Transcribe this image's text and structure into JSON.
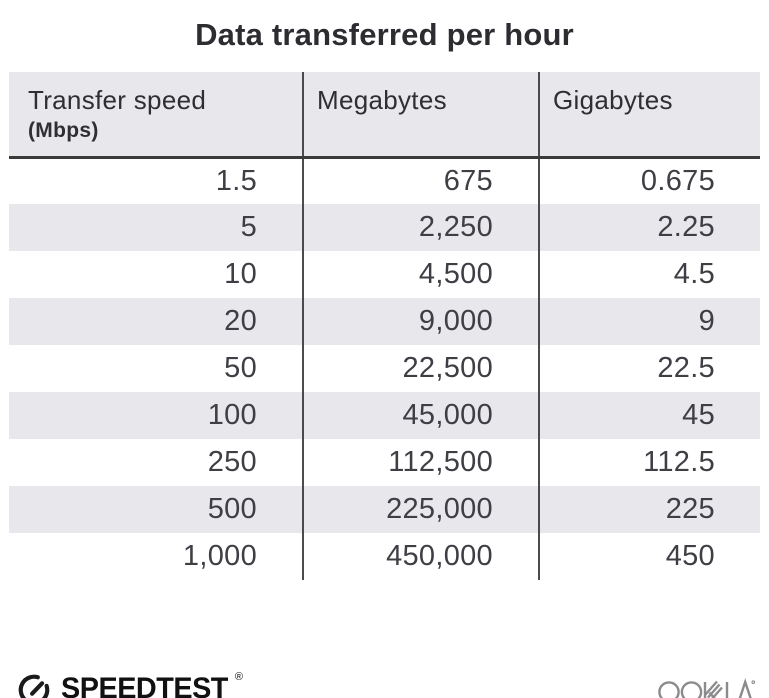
{
  "title": "Data transferred per hour",
  "table": {
    "columns": [
      {
        "label": "Transfer speed",
        "sublabel": "(Mbps)"
      },
      {
        "label": "Megabytes",
        "sublabel": ""
      },
      {
        "label": "Gigabytes",
        "sublabel": ""
      }
    ],
    "rows": [
      [
        "1.5",
        "675",
        "0.675"
      ],
      [
        "5",
        "2,250",
        "2.25"
      ],
      [
        "10",
        "4,500",
        "4.5"
      ],
      [
        "20",
        "9,000",
        "9"
      ],
      [
        "50",
        "22,500",
        "22.5"
      ],
      [
        "100",
        "45,000",
        "45"
      ],
      [
        "250",
        "112,500",
        "112.5"
      ],
      [
        "500",
        "225,000",
        "225"
      ],
      [
        "1,000",
        "450,000",
        "450"
      ]
    ]
  },
  "chart_data": {
    "type": "table",
    "title": "Data transferred per hour",
    "columns": [
      "Transfer speed (Mbps)",
      "Megabytes",
      "Gigabytes"
    ],
    "rows": [
      [
        1.5,
        675,
        0.675
      ],
      [
        5,
        2250,
        2.25
      ],
      [
        10,
        4500,
        4.5
      ],
      [
        20,
        9000,
        9
      ],
      [
        50,
        22500,
        22.5
      ],
      [
        100,
        45000,
        45
      ],
      [
        250,
        112500,
        112.5
      ],
      [
        500,
        225000,
        225
      ],
      [
        1000,
        450000,
        450
      ]
    ],
    "layout_hints": {
      "striped_rows": true,
      "column_dividers": true,
      "value_alignment": "right"
    }
  },
  "footer": {
    "speedtest_label": "SPEEDTEST",
    "speedtest_trademark": "®",
    "ookla_label": "OOKLA"
  },
  "colors": {
    "background": "#ffffff",
    "header_and_stripe_bg": "#e8e7eb",
    "grid_line": "#4b4b4b",
    "header_underline": "#3a3a3a",
    "title_text": "#2d2c31",
    "body_text": "#3f3e44",
    "speedtest_black": "#1b1b1b",
    "ookla_gray": "#8b8b8e"
  }
}
